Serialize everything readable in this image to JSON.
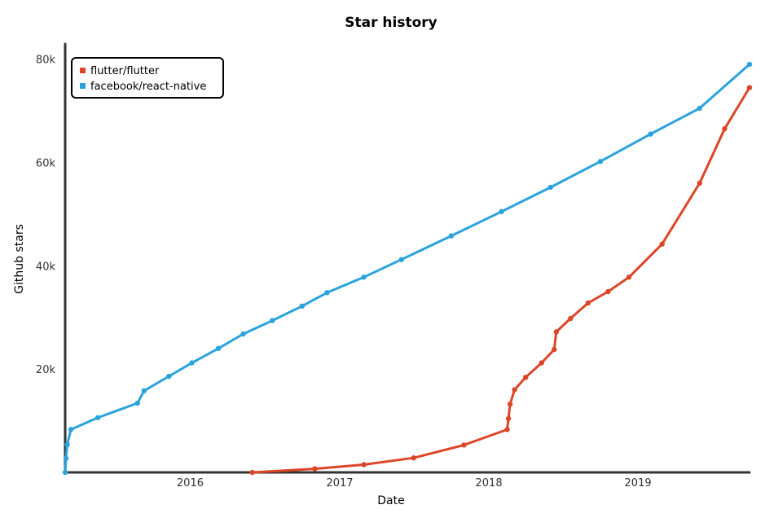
{
  "chart_data": {
    "type": "line",
    "title": "Star history",
    "xlabel": "Date",
    "ylabel": "Github stars",
    "x_axis": {
      "type": "date",
      "range": [
        "2015-03-01",
        "2019-10-01"
      ],
      "ticks": [
        "2016",
        "2017",
        "2018",
        "2019"
      ]
    },
    "y_axis": {
      "range": [
        0,
        82000
      ],
      "ticks": [
        "20k",
        "40k",
        "60k",
        "80k"
      ]
    },
    "grid": false,
    "legend": {
      "placement": "top-left"
    },
    "series": [
      {
        "name": "flutter/flutter",
        "color": "#dd4528",
        "points": [
          [
            "2016-06-01",
            0
          ],
          [
            "2016-11-01",
            700
          ],
          [
            "2017-03-01",
            1500
          ],
          [
            "2017-07-01",
            2800
          ],
          [
            "2017-11-01",
            5300
          ],
          [
            "2018-02-15",
            8300
          ],
          [
            "2018-02-18",
            10400
          ],
          [
            "2018-02-22",
            13200
          ],
          [
            "2018-03-05",
            16000
          ],
          [
            "2018-04-01",
            18400
          ],
          [
            "2018-05-10",
            21200
          ],
          [
            "2018-06-10",
            23800
          ],
          [
            "2018-06-15",
            27200
          ],
          [
            "2018-07-20",
            29800
          ],
          [
            "2018-09-01",
            32800
          ],
          [
            "2018-10-20",
            35000
          ],
          [
            "2018-12-10",
            37800
          ],
          [
            "2019-03-01",
            44200
          ],
          [
            "2019-06-01",
            56000
          ],
          [
            "2019-08-01",
            66500
          ],
          [
            "2019-10-01",
            74500
          ]
        ]
      },
      {
        "name": "facebook/react-native",
        "color": "#2aa3dd",
        "points": [
          [
            "2015-03-01",
            0
          ],
          [
            "2015-03-03",
            2700
          ],
          [
            "2015-03-06",
            5400
          ],
          [
            "2015-03-15",
            8300
          ],
          [
            "2015-05-20",
            10600
          ],
          [
            "2015-08-25",
            13400
          ],
          [
            "2015-09-10",
            15800
          ],
          [
            "2015-11-10",
            18600
          ],
          [
            "2016-01-05",
            21200
          ],
          [
            "2016-03-10",
            24000
          ],
          [
            "2016-05-10",
            26800
          ],
          [
            "2016-07-20",
            29400
          ],
          [
            "2016-10-01",
            32200
          ],
          [
            "2016-12-01",
            34800
          ],
          [
            "2017-03-01",
            37800
          ],
          [
            "2017-06-01",
            41200
          ],
          [
            "2017-10-01",
            45800
          ],
          [
            "2018-02-01",
            50500
          ],
          [
            "2018-06-01",
            55200
          ],
          [
            "2018-10-01",
            60200
          ],
          [
            "2019-02-01",
            65500
          ],
          [
            "2019-06-01",
            70500
          ],
          [
            "2019-10-01",
            79000
          ]
        ]
      }
    ]
  }
}
